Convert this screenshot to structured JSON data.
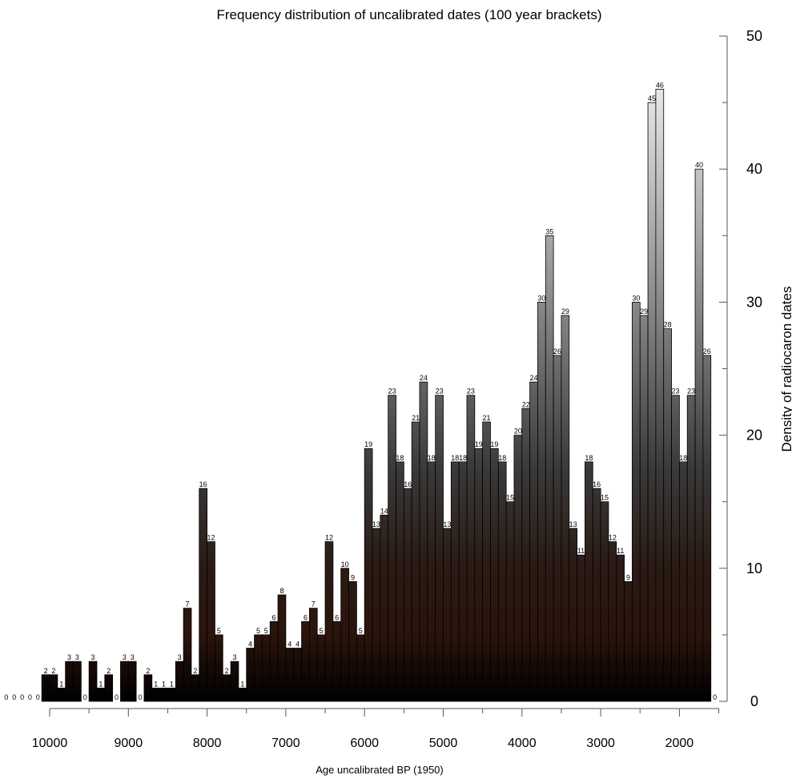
{
  "chart_data": {
    "type": "bar",
    "title": "Frequency distribution of uncalibrated dates (100 year brackets)",
    "xlabel": "Age uncalibrated BP (1950)",
    "ylabel": "Density of radiocaron dates",
    "bin_width": 100,
    "x_reversed": true,
    "xlim": [
      10600,
      1500
    ],
    "ylim": [
      0,
      50
    ],
    "x_ticks": [
      10000,
      9000,
      8000,
      7000,
      6000,
      5000,
      4000,
      3000,
      2000
    ],
    "y_ticks": [
      0,
      10,
      20,
      30,
      40,
      50
    ],
    "y_minor_ticks": [
      5,
      15,
      25,
      35,
      45
    ],
    "bin_starts": [
      10500,
      10400,
      10300,
      10200,
      10100,
      10000,
      9900,
      9800,
      9700,
      9600,
      9500,
      9400,
      9300,
      9200,
      9100,
      9000,
      8900,
      8800,
      8700,
      8600,
      8500,
      8400,
      8300,
      8200,
      8100,
      8000,
      7900,
      7800,
      7700,
      7600,
      7500,
      7400,
      7300,
      7200,
      7100,
      7000,
      6900,
      6800,
      6700,
      6600,
      6500,
      6400,
      6300,
      6200,
      6100,
      6000,
      5900,
      5800,
      5700,
      5600,
      5500,
      5400,
      5300,
      5200,
      5100,
      5000,
      4900,
      4800,
      4700,
      4600,
      4500,
      4400,
      4300,
      4200,
      4100,
      4000,
      3900,
      3800,
      3700,
      3600,
      3500,
      3400,
      3300,
      3200,
      3100,
      3000,
      2900,
      2800,
      2700,
      2600,
      2500,
      2400,
      2300,
      2200,
      2100,
      2000,
      1900,
      1800,
      1700,
      1600
    ],
    "values": [
      0,
      0,
      0,
      0,
      0,
      2,
      2,
      1,
      3,
      3,
      0,
      3,
      1,
      2,
      0,
      3,
      3,
      0,
      2,
      1,
      1,
      1,
      3,
      7,
      2,
      16,
      12,
      5,
      2,
      3,
      1,
      4,
      5,
      5,
      6,
      8,
      4,
      4,
      6,
      7,
      5,
      12,
      6,
      10,
      9,
      5,
      19,
      13,
      14,
      23,
      18,
      16,
      21,
      24,
      18,
      23,
      13,
      18,
      18,
      23,
      19,
      21,
      19,
      18,
      15,
      20,
      22,
      24,
      30,
      35,
      26,
      29,
      13,
      11,
      18,
      16,
      15,
      12,
      11,
      9,
      30,
      29,
      45,
      46,
      28,
      23,
      18,
      23,
      40,
      26
    ],
    "extra_labels": [
      {
        "bin_start": 1500,
        "value": 0
      }
    ],
    "color_gradient": [
      "#000000",
      "#2b140c",
      "#3a3a3a",
      "#8a8a8a",
      "#ffffff"
    ]
  }
}
